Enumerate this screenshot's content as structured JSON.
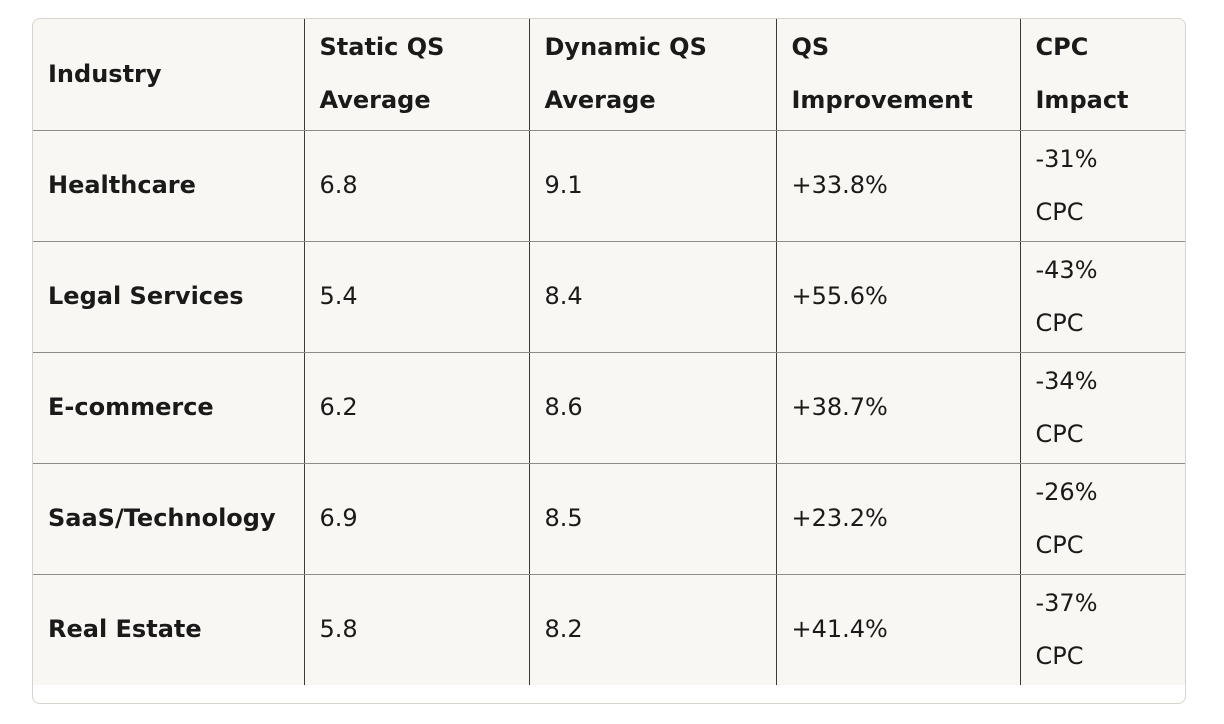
{
  "table": {
    "headers": [
      [
        "Industry"
      ],
      [
        "Static QS",
        "Average"
      ],
      [
        "Dynamic QS",
        "Average"
      ],
      [
        "QS",
        "Improvement"
      ],
      [
        "CPC",
        "Impact"
      ]
    ],
    "rows": [
      {
        "industry": "Healthcare",
        "static_qs": "6.8",
        "dynamic_qs": "9.1",
        "improvement": "+33.8%",
        "cpc_value": "-31%",
        "cpc_unit": "CPC"
      },
      {
        "industry": "Legal Services",
        "static_qs": "5.4",
        "dynamic_qs": "8.4",
        "improvement": "+55.6%",
        "cpc_value": "-43%",
        "cpc_unit": "CPC"
      },
      {
        "industry": "E-commerce",
        "static_qs": "6.2",
        "dynamic_qs": "8.6",
        "improvement": "+38.7%",
        "cpc_value": "-34%",
        "cpc_unit": "CPC"
      },
      {
        "industry": "SaaS/Technology",
        "static_qs": "6.9",
        "dynamic_qs": "8.5",
        "improvement": "+23.2%",
        "cpc_value": "-26%",
        "cpc_unit": "CPC"
      },
      {
        "industry": "Real Estate",
        "static_qs": "5.8",
        "dynamic_qs": "8.2",
        "improvement": "+41.4%",
        "cpc_value": "-37%",
        "cpc_unit": "CPC"
      }
    ]
  }
}
